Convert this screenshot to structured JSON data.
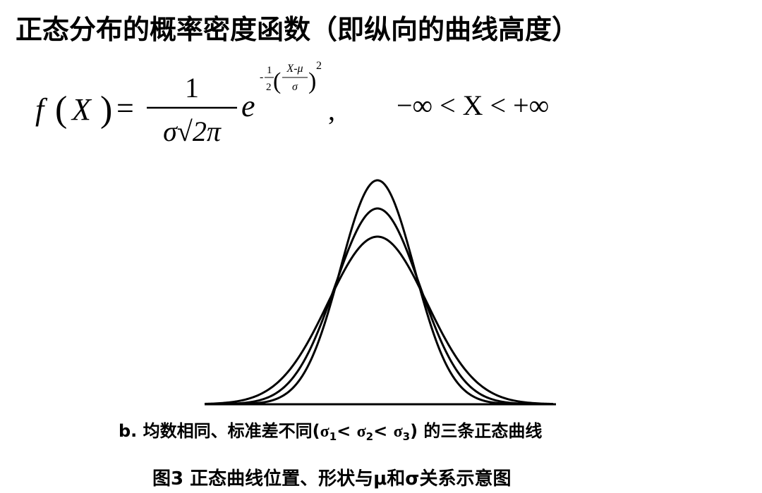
{
  "title": "正态分布的概率密度函数（即纵向的曲线高度）",
  "formula": {
    "lhs": "f",
    "lparen": "(",
    "var": "X",
    "rparen": ")",
    "equals": "=",
    "numerator": "1",
    "denominator": "σ√2π",
    "base": "e",
    "exponent": {
      "sign": "-",
      "num": "1",
      "den": "2",
      "lparen": "(",
      "inner_num": "X-μ",
      "inner_den": "σ",
      "rparen": ")",
      "power": "2"
    },
    "comma": ",",
    "domain": "−∞ < X < +∞"
  },
  "figure": {
    "caption_parts": [
      "b. 均数相同、标准差不同(",
      "σ",
      "1",
      "< ",
      "σ",
      "2",
      "< ",
      "σ",
      "3",
      ") 的三条正态曲线"
    ],
    "figure_title": "图3 正态曲线位置、形状与μ和σ关系示意图"
  }
}
